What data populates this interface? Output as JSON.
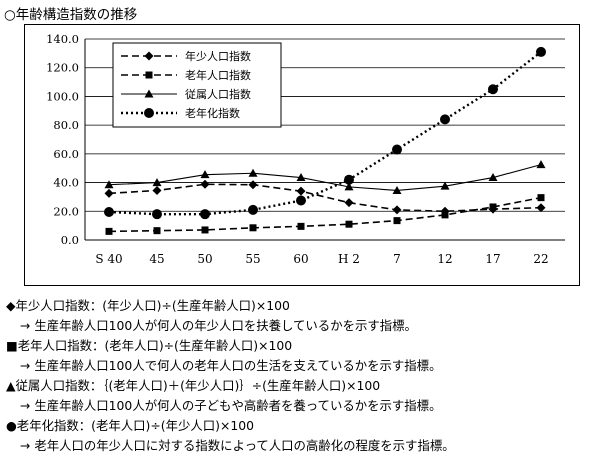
{
  "page": {
    "title": "○年齢構造指数の推移"
  },
  "chart_data": {
    "type": "line",
    "title": "",
    "xlabel": "",
    "ylabel": "",
    "ylim": [
      0,
      140
    ],
    "yticks": [
      "0.0",
      "20.0",
      "40.0",
      "60.0",
      "80.0",
      "100.0",
      "120.0",
      "140.0"
    ],
    "categories": [
      "S 40",
      "45",
      "50",
      "55",
      "60",
      "H 2",
      "7",
      "12",
      "17",
      "22"
    ],
    "grid": "horizontal",
    "legend_position": "top-left",
    "series": [
      {
        "name": "年少人口指数",
        "marker": "diamond",
        "line": "dashed",
        "values": [
          32.5,
          34.5,
          38.8,
          38.5,
          34.0,
          26.0,
          21.0,
          20.0,
          21.5,
          22.5
        ]
      },
      {
        "name": "老年人口指数",
        "marker": "square",
        "line": "dashed",
        "values": [
          6.0,
          6.5,
          7.0,
          8.5,
          9.5,
          11.0,
          13.5,
          17.5,
          23.0,
          29.5
        ]
      },
      {
        "name": "従属人口指数",
        "marker": "triangle",
        "line": "solid",
        "values": [
          38.5,
          40.0,
          45.5,
          46.5,
          43.5,
          37.0,
          34.5,
          37.5,
          43.5,
          52.5
        ]
      },
      {
        "name": "老年化指数",
        "marker": "circle",
        "line": "dotted",
        "values": [
          19.5,
          18.0,
          18.0,
          21.0,
          27.5,
          42.0,
          63.0,
          84.0,
          105.0,
          131.0
        ]
      }
    ]
  },
  "notes": [
    {
      "definition": "◆年少人口指数：(年少人口)÷(生産年齢人口)×100",
      "description": "→ 生産年齢人口100人が何人の年少人口を扶養しているかを示す指標。"
    },
    {
      "definition": "■老年人口指数：(老年人口)÷(生産年齢人口)×100",
      "description": "→ 生産年齢人口100人で何人の老年人口の生活を支えているかを示す指標。"
    },
    {
      "definition": "▲従属人口指数：｛(老年人口)＋(年少人口)｝÷(生産年齢人口)×100",
      "description": "→ 生産年齢人口100人が何人の子どもや高齢者を養っているかを示す指標。"
    },
    {
      "definition": "●老年化指数：(老年人口)÷(年少人口)×100",
      "description": "→ 老年人口の年少人口に対する指数によって人口の高齢化の程度を示す指標。"
    }
  ]
}
